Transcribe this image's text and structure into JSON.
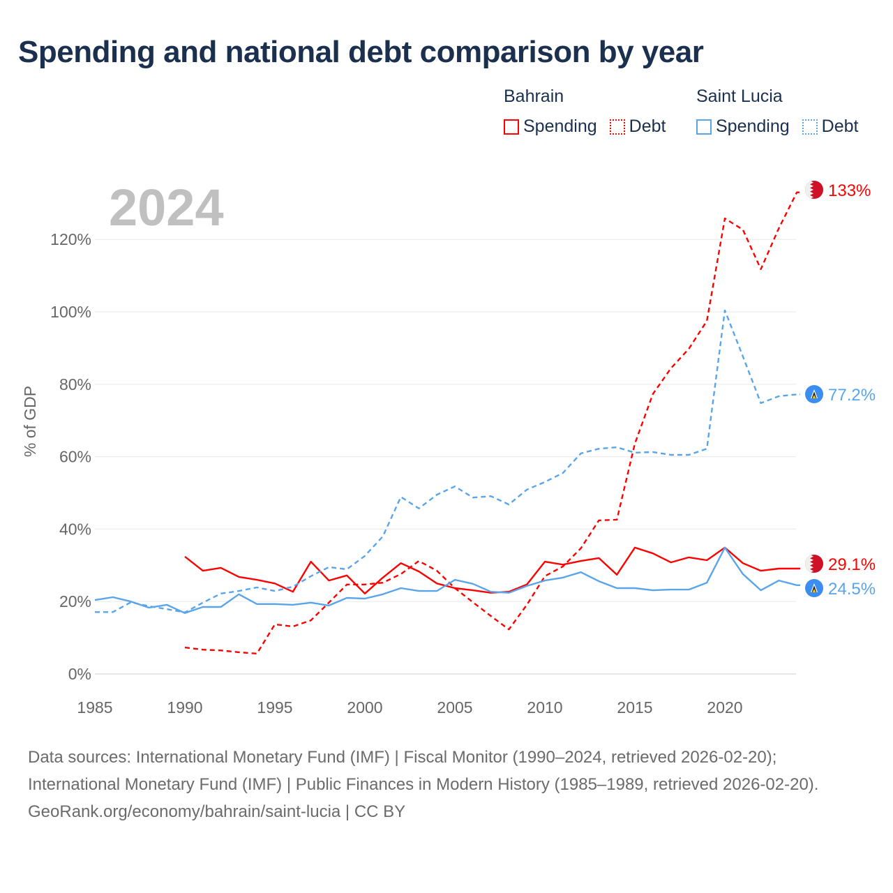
{
  "title": "Spending and national debt comparison by year",
  "legend": {
    "groups": [
      {
        "name": "Bahrain",
        "color": "#ff0000",
        "items": [
          "Spending",
          "Debt"
        ]
      },
      {
        "name": "Saint Lucia",
        "color": "#5aa5ea",
        "items": [
          "Spending",
          "Debt"
        ]
      }
    ]
  },
  "year_watermark": "2024",
  "chart_data": {
    "type": "line",
    "title": "Spending and national debt comparison by year",
    "xlabel": "",
    "ylabel": "% of GDP",
    "xlim": [
      1985,
      2024
    ],
    "ylim": [
      0,
      133
    ],
    "x_ticks": [
      "1985",
      "1990",
      "1995",
      "2000",
      "2005",
      "2010",
      "2015",
      "2020"
    ],
    "y_ticks": [
      "0%",
      "20%",
      "40%",
      "60%",
      "80%",
      "100%",
      "120%"
    ],
    "grid": true,
    "legend_position": "top-right",
    "series": [
      {
        "name": "Bahrain Spending",
        "color": "#ff0000",
        "dash": false,
        "start": 1990,
        "end_label": "29.1%",
        "flag": "bahrain-flag",
        "values": [
          32.4,
          28.5,
          29.3,
          26.8,
          26.0,
          25.0,
          22.7,
          31.0,
          25.8,
          27.2,
          22.2,
          26.6,
          30.6,
          28.3,
          25.0,
          23.7,
          23.1,
          22.4,
          22.7,
          24.7,
          31.0,
          30.2,
          31.2,
          32.0,
          27.4,
          34.9,
          33.3,
          30.8,
          32.2,
          31.4,
          34.9,
          30.6,
          28.5,
          29.1,
          29.1
        ]
      },
      {
        "name": "Bahrain Debt",
        "color": "#ff0000",
        "dash": true,
        "start": 1990,
        "end_label": "133%",
        "flag": "bahrain-flag",
        "values": [
          7.3,
          6.7,
          6.5,
          6.0,
          5.6,
          13.7,
          13.1,
          14.8,
          19.7,
          24.7,
          24.7,
          25.2,
          27.6,
          31.2,
          28.5,
          23.7,
          19.8,
          16.0,
          12.3,
          19.1,
          27.0,
          29.7,
          34.7,
          42.4,
          42.6,
          63.6,
          77.3,
          84.4,
          89.8,
          97.5,
          125.8,
          122.7,
          111.8,
          123.1,
          133.0
        ]
      },
      {
        "name": "Saint Lucia Spending",
        "color": "#5aa5ea",
        "dash": false,
        "start": 1985,
        "end_label": "24.5%",
        "flag": "saint-lucia-flag",
        "values": [
          20.4,
          21.2,
          20.0,
          18.3,
          19.1,
          16.8,
          18.5,
          18.5,
          22.0,
          19.3,
          19.3,
          19.1,
          19.7,
          18.9,
          21.0,
          20.8,
          22.0,
          23.7,
          22.9,
          22.9,
          26.0,
          24.9,
          22.7,
          22.4,
          24.3,
          25.8,
          26.6,
          28.1,
          25.6,
          23.7,
          23.7,
          23.1,
          23.3,
          23.3,
          25.2,
          34.9,
          27.6,
          23.1,
          25.8,
          24.5
        ]
      },
      {
        "name": "Saint Lucia Debt",
        "color": "#5aa5ea",
        "dash": true,
        "start": 1985,
        "end_label": "77.2%",
        "flag": "saint-lucia-flag",
        "values": [
          17.1,
          17.1,
          19.8,
          18.7,
          17.9,
          17.0,
          19.7,
          22.2,
          22.9,
          23.9,
          22.9,
          24.1,
          27.0,
          29.5,
          28.9,
          32.6,
          38.0,
          48.9,
          45.7,
          49.5,
          51.8,
          48.7,
          49.1,
          46.8,
          50.9,
          53.0,
          55.5,
          60.9,
          62.2,
          62.6,
          61.1,
          61.3,
          60.5,
          60.5,
          62.2,
          100.4,
          87.7,
          74.8,
          76.7,
          77.2
        ]
      }
    ]
  },
  "footer": {
    "sources": "Data sources: International Monetary Fund (IMF) | Fiscal Monitor (1990–2024, retrieved 2026-02-20); International Monetary Fund (IMF) | Public Finances in Modern History (1985–1989, retrieved 2026-02-20).",
    "attribution": "GeoRank.org/economy/bahrain/saint-lucia | CC BY"
  }
}
